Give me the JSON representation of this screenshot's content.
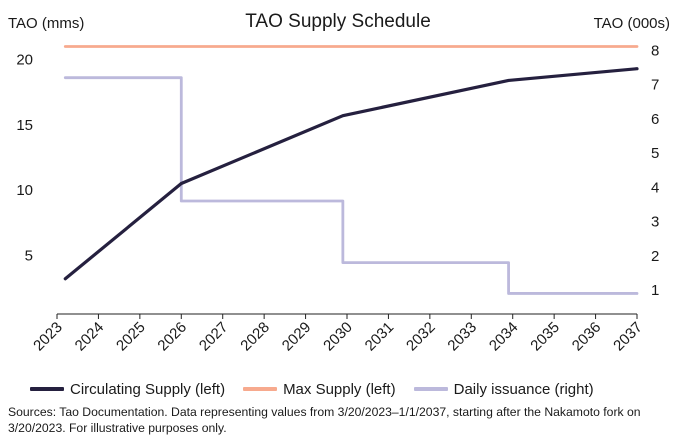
{
  "chart_data": {
    "type": "line",
    "title": "TAO Supply Schedule",
    "ylabel_left": "TAO (mms)",
    "ylabel_right": "TAO (000s)",
    "x_ticks": [
      "2023",
      "2024",
      "2025",
      "2026",
      "2027",
      "2028",
      "2029",
      "2030",
      "2031",
      "2032",
      "2033",
      "2034",
      "2035",
      "2036",
      "2037"
    ],
    "xlim": [
      2023,
      2037
    ],
    "y_left_ticks": [
      "5",
      "10",
      "15",
      "20"
    ],
    "y_left_lim": [
      0.5,
      21.5
    ],
    "y_right_ticks": [
      "1",
      "2",
      "3",
      "4",
      "5",
      "6",
      "7",
      "8"
    ],
    "y_right_lim": [
      0.3,
      8.3
    ],
    "colors": {
      "circulating": "#25203f",
      "max": "#f7aa8e",
      "issuance": "#bcb9dc",
      "axis": "#222222"
    },
    "series": [
      {
        "name": "Circulating Supply (left)",
        "axis": "left",
        "step": false,
        "x": [
          2023.2,
          2026.0,
          2029.9,
          2033.9,
          2037.0
        ],
        "y": [
          3.2,
          10.5,
          15.7,
          18.4,
          19.3
        ]
      },
      {
        "name": "Max Supply (left)",
        "axis": "left",
        "step": false,
        "x": [
          2023.2,
          2037.0
        ],
        "y": [
          21.0,
          21.0
        ]
      },
      {
        "name": "Daily issuance (right)",
        "axis": "right",
        "step": true,
        "x": [
          2023.2,
          2026.0,
          2029.9,
          2033.9,
          2037.0
        ],
        "y": [
          7.2,
          3.6,
          1.8,
          0.9,
          0.9
        ]
      }
    ],
    "legend_position": "bottom",
    "grid": false
  },
  "source_note": "Sources: Tao Documentation. Data representing values from 3/20/2023–1/1/2037, starting after the Nakamoto fork on 3/20/2023. For illustrative purposes only."
}
